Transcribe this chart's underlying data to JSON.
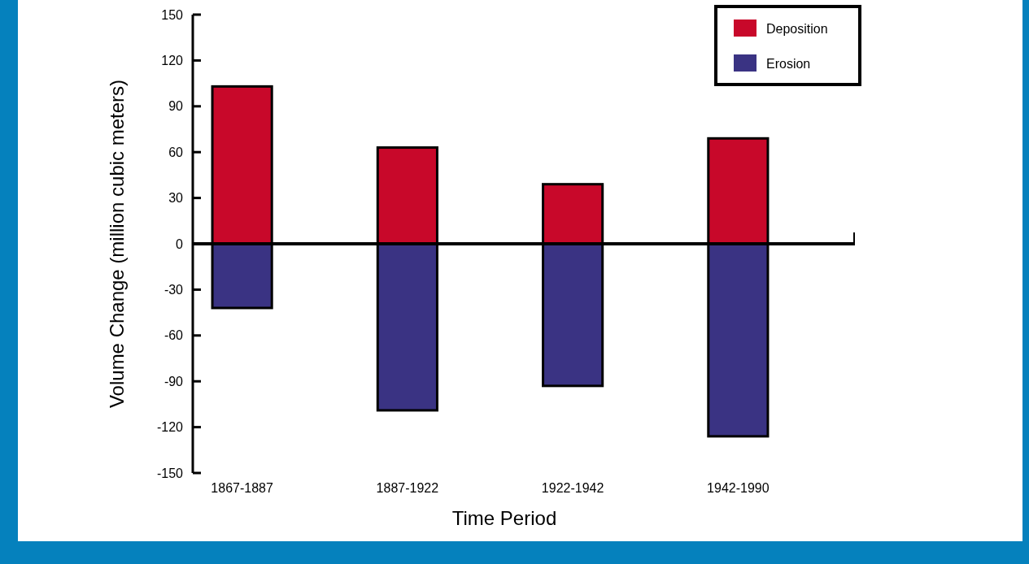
{
  "chart_data": {
    "type": "bar",
    "stacked": true,
    "xlabel": "Time Period",
    "ylabel": "Volume Change (million cubic meters)",
    "categories": [
      "1867-1887",
      "1887-1922",
      "1922-1942",
      "1942-1990"
    ],
    "series": [
      {
        "name": "Deposition",
        "color": "#c8082a",
        "values": [
          103,
          63,
          39,
          69
        ]
      },
      {
        "name": "Erosion",
        "color": "#3a3383",
        "values": [
          -42,
          -109,
          -93,
          -126
        ]
      }
    ],
    "ylim": [
      -150,
      150
    ],
    "yticks": [
      -150,
      -120,
      -90,
      -60,
      -30,
      0,
      30,
      60,
      90,
      120,
      150
    ],
    "legend": "top right"
  }
}
